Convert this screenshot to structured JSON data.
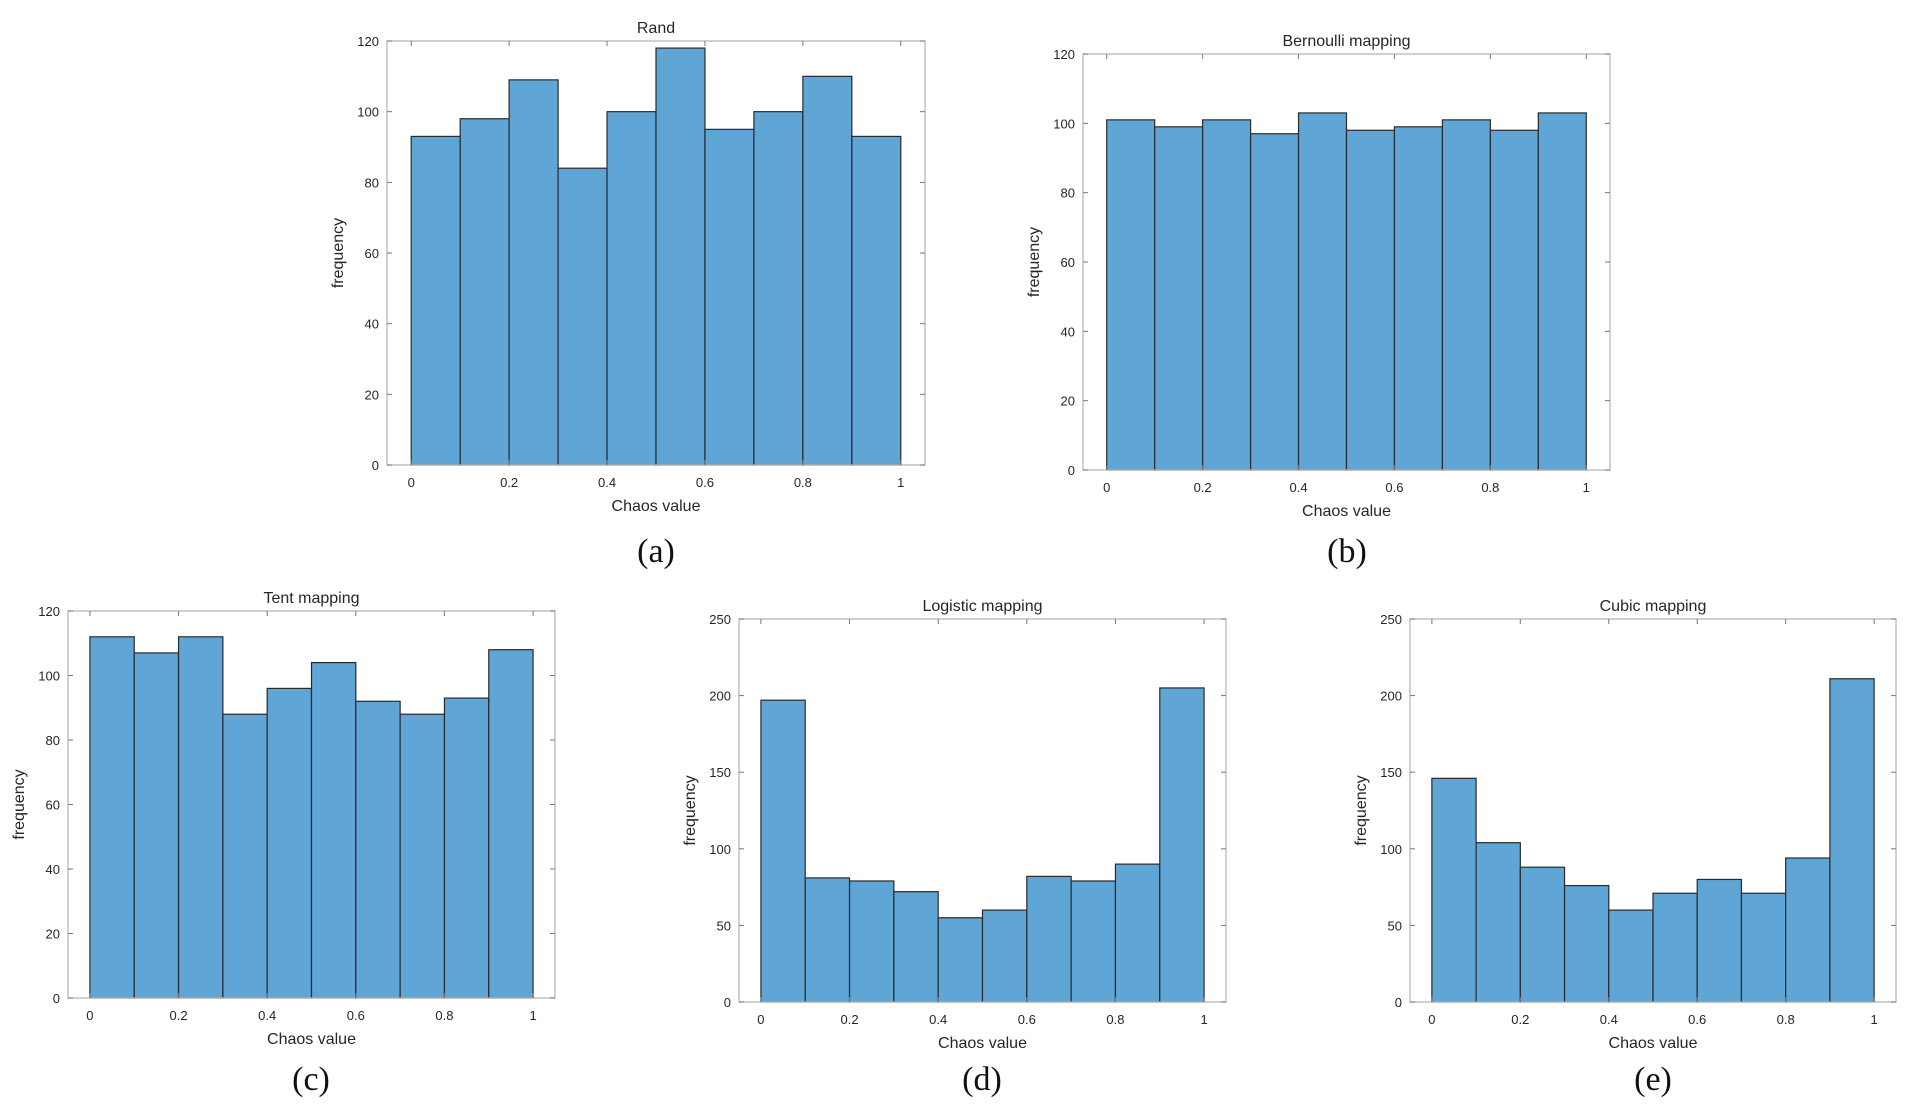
{
  "chart_data": [
    {
      "id": "a",
      "type": "bar",
      "panel_label": "(a)",
      "title": "Rand",
      "xlabel": "Chaos value",
      "ylabel": "frequency",
      "xlim": [
        0,
        1
      ],
      "ylim": [
        0,
        120
      ],
      "xticks": [
        "0",
        "0.2",
        "0.4",
        "0.6",
        "0.8",
        "1"
      ],
      "yticks": [
        "0",
        "20",
        "40",
        "60",
        "80",
        "100",
        "120"
      ],
      "bin_edges": [
        0,
        0.1,
        0.2,
        0.3,
        0.4,
        0.5,
        0.6,
        0.7,
        0.8,
        0.9,
        1.0
      ],
      "values": [
        93,
        98,
        109,
        84,
        100,
        118,
        95,
        100,
        110,
        93
      ],
      "color": "#5fa5d6"
    },
    {
      "id": "b",
      "type": "bar",
      "panel_label": "(b)",
      "title": "Bernoulli mapping",
      "xlabel": "Chaos value",
      "ylabel": "frequency",
      "xlim": [
        0,
        1
      ],
      "ylim": [
        0,
        120
      ],
      "xticks": [
        "0",
        "0.2",
        "0.4",
        "0.6",
        "0.8",
        "1"
      ],
      "yticks": [
        "0",
        "20",
        "40",
        "60",
        "80",
        "100",
        "120"
      ],
      "bin_edges": [
        0,
        0.1,
        0.2,
        0.3,
        0.4,
        0.5,
        0.6,
        0.7,
        0.8,
        0.9,
        1.0
      ],
      "values": [
        101,
        99,
        101,
        97,
        103,
        98,
        99,
        101,
        98,
        103
      ],
      "color": "#5fa5d6"
    },
    {
      "id": "c",
      "type": "bar",
      "panel_label": "(c)",
      "title": "Tent mapping",
      "xlabel": "Chaos value",
      "ylabel": "frequency",
      "xlim": [
        0,
        1
      ],
      "ylim": [
        0,
        120
      ],
      "xticks": [
        "0",
        "0.2",
        "0.4",
        "0.6",
        "0.8",
        "1"
      ],
      "yticks": [
        "0",
        "20",
        "40",
        "60",
        "80",
        "100",
        "120"
      ],
      "bin_edges": [
        0,
        0.1,
        0.2,
        0.3,
        0.4,
        0.5,
        0.6,
        0.7,
        0.8,
        0.9,
        1.0
      ],
      "values": [
        112,
        107,
        112,
        88,
        96,
        104,
        92,
        88,
        93,
        108
      ],
      "color": "#5fa5d6"
    },
    {
      "id": "d",
      "type": "bar",
      "panel_label": "(d)",
      "title": "Logistic mapping",
      "xlabel": "Chaos value",
      "ylabel": "frequency",
      "xlim": [
        0,
        1
      ],
      "ylim": [
        0,
        250
      ],
      "xticks": [
        "0",
        "0.2",
        "0.4",
        "0.6",
        "0.8",
        "1"
      ],
      "yticks": [
        "0",
        "50",
        "100",
        "150",
        "200",
        "250"
      ],
      "bin_edges": [
        0,
        0.1,
        0.2,
        0.3,
        0.4,
        0.5,
        0.6,
        0.7,
        0.8,
        0.9,
        1.0
      ],
      "values": [
        197,
        81,
        79,
        72,
        55,
        60,
        82,
        79,
        90,
        205
      ],
      "color": "#5fa5d6"
    },
    {
      "id": "e",
      "type": "bar",
      "panel_label": "(e)",
      "title": "Cubic mapping",
      "xlabel": "Chaos value",
      "ylabel": "frequency",
      "xlim": [
        0,
        1
      ],
      "ylim": [
        0,
        250
      ],
      "xticks": [
        "0",
        "0.2",
        "0.4",
        "0.6",
        "0.8",
        "1"
      ],
      "yticks": [
        "0",
        "50",
        "100",
        "150",
        "200",
        "250"
      ],
      "bin_edges": [
        0,
        0.1,
        0.2,
        0.3,
        0.4,
        0.5,
        0.6,
        0.7,
        0.8,
        0.9,
        1.0
      ],
      "values": [
        146,
        104,
        88,
        76,
        60,
        71,
        80,
        71,
        94,
        211
      ],
      "color": "#5fa5d6"
    }
  ]
}
